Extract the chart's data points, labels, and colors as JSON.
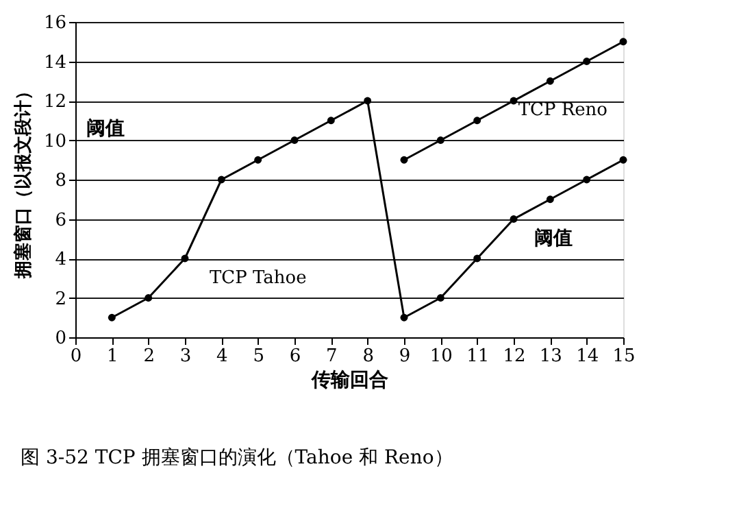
{
  "chart_data": {
    "type": "line",
    "xlabel": "传输回合",
    "ylabel": "拥塞窗口（以报文段计）",
    "x": [
      1,
      2,
      3,
      4,
      5,
      6,
      7,
      8,
      9,
      10,
      11,
      12,
      13,
      14,
      15
    ],
    "series": [
      {
        "name": "TCP Tahoe",
        "color": "#000000",
        "values": [
          1,
          2,
          4,
          8,
          9,
          10,
          11,
          12,
          1,
          2,
          4,
          6,
          7,
          8,
          9
        ]
      },
      {
        "name": "TCP Reno",
        "color": "#000000",
        "x": [
          9,
          10,
          11,
          12,
          13,
          14,
          15
        ],
        "values": [
          9,
          10,
          11,
          12,
          13,
          14,
          15
        ]
      }
    ],
    "xlim": [
      0,
      15
    ],
    "xticks": [
      0,
      1,
      2,
      3,
      4,
      5,
      6,
      7,
      8,
      9,
      10,
      11,
      12,
      13,
      14,
      15
    ],
    "ylim": [
      0,
      16
    ],
    "yticks": [
      0,
      2,
      4,
      6,
      8,
      10,
      12,
      14,
      16
    ],
    "grid": "y",
    "marker": "circle",
    "line_style": "solid",
    "legend": false,
    "annotations": [
      "阈值",
      "阈值",
      "图 3-52    TCP 拥塞窗口的演化（Tahoe 和 Reno）"
    ]
  }
}
